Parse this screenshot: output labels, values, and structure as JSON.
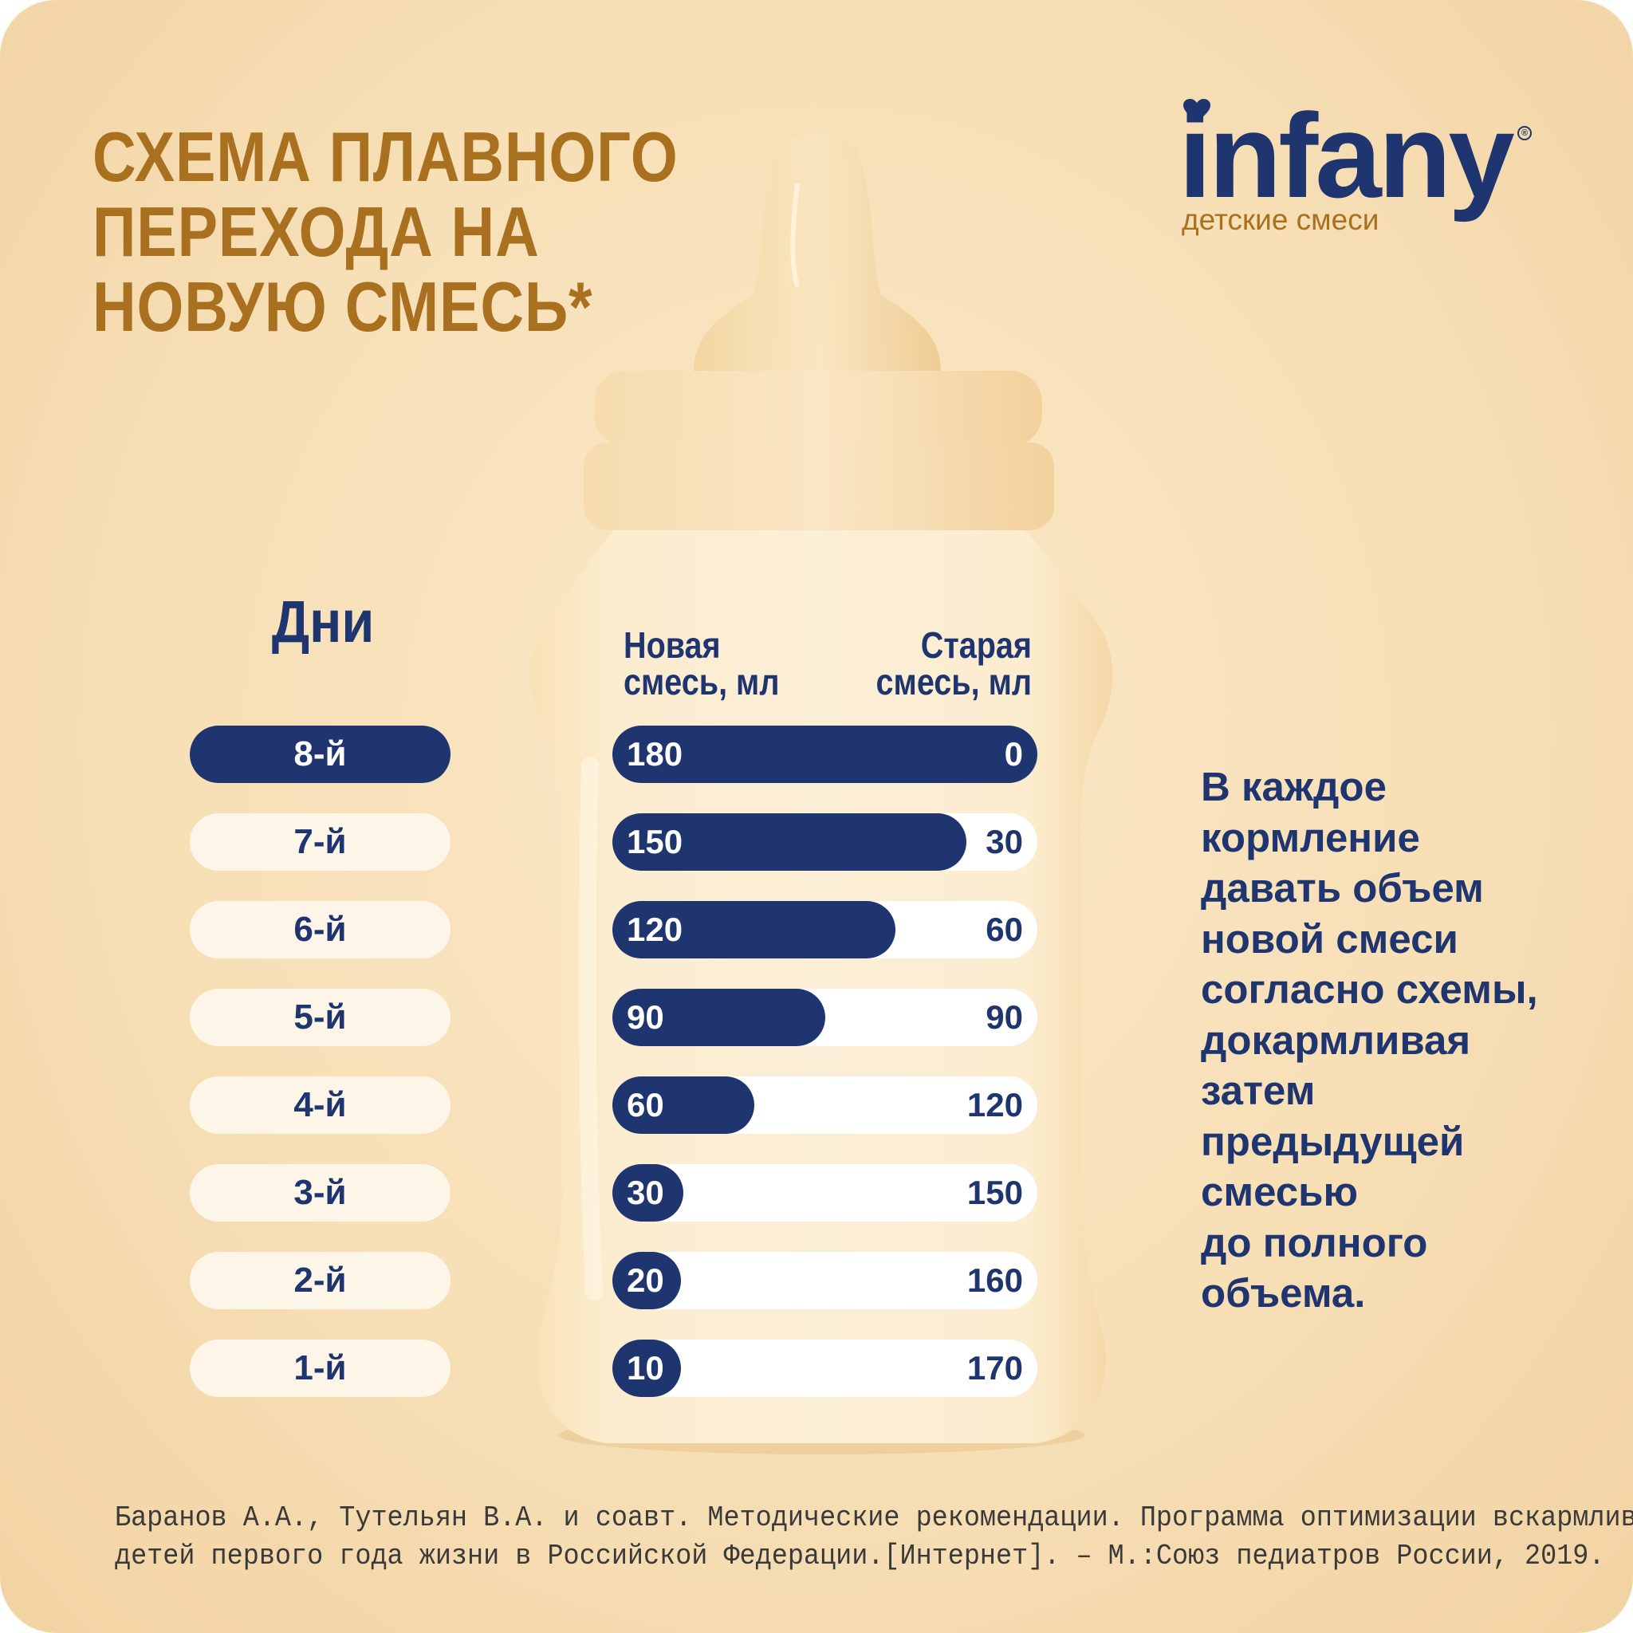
{
  "title_lines": [
    "СХЕМА ПЛАВНОГО",
    "ПЕРЕХОДА НА",
    "НОВУЮ СМЕСЬ*"
  ],
  "logo": {
    "brand": "infany",
    "registered": "®",
    "tagline": "детские смеси",
    "heart_icon": "heart-icon"
  },
  "days_title": "Дни",
  "column_new": [
    "Новая",
    "смесь, мл"
  ],
  "column_old": [
    "Старая",
    "смесь, мл"
  ],
  "instruction_lines": [
    "В каждое",
    "кормление",
    "давать объем",
    "новой смеси",
    "согласно схемы,",
    "докармливая",
    "затем",
    "предыдущей",
    "смесью",
    "до полного",
    "объема."
  ],
  "footnote_lines": [
    "Баранов А.А., Тутельян В.А. и соавт. Методические рекомендации. Программа оптимизации вскармливания",
    "детей первого года жизни в Российской Федерации.[Интернет]. – М.:Союз педиатров России, 2019."
  ],
  "colors": {
    "navy": "#1f3570",
    "gold": "#a8701f",
    "pill_light": "#fdf6e8",
    "background": "#f7dfb6"
  },
  "chart_data": {
    "type": "bar",
    "stacked": true,
    "orientation": "horizontal",
    "total": 180,
    "categories": [
      "8-й",
      "7-й",
      "6-й",
      "5-й",
      "4-й",
      "3-й",
      "2-й",
      "1-й"
    ],
    "series": [
      {
        "name": "Новая смесь, мл",
        "values": [
          180,
          150,
          120,
          90,
          60,
          30,
          20,
          10
        ]
      },
      {
        "name": "Старая смесь, мл",
        "values": [
          0,
          30,
          60,
          90,
          120,
          150,
          160,
          170
        ]
      }
    ],
    "highlighted_category": "8-й"
  }
}
